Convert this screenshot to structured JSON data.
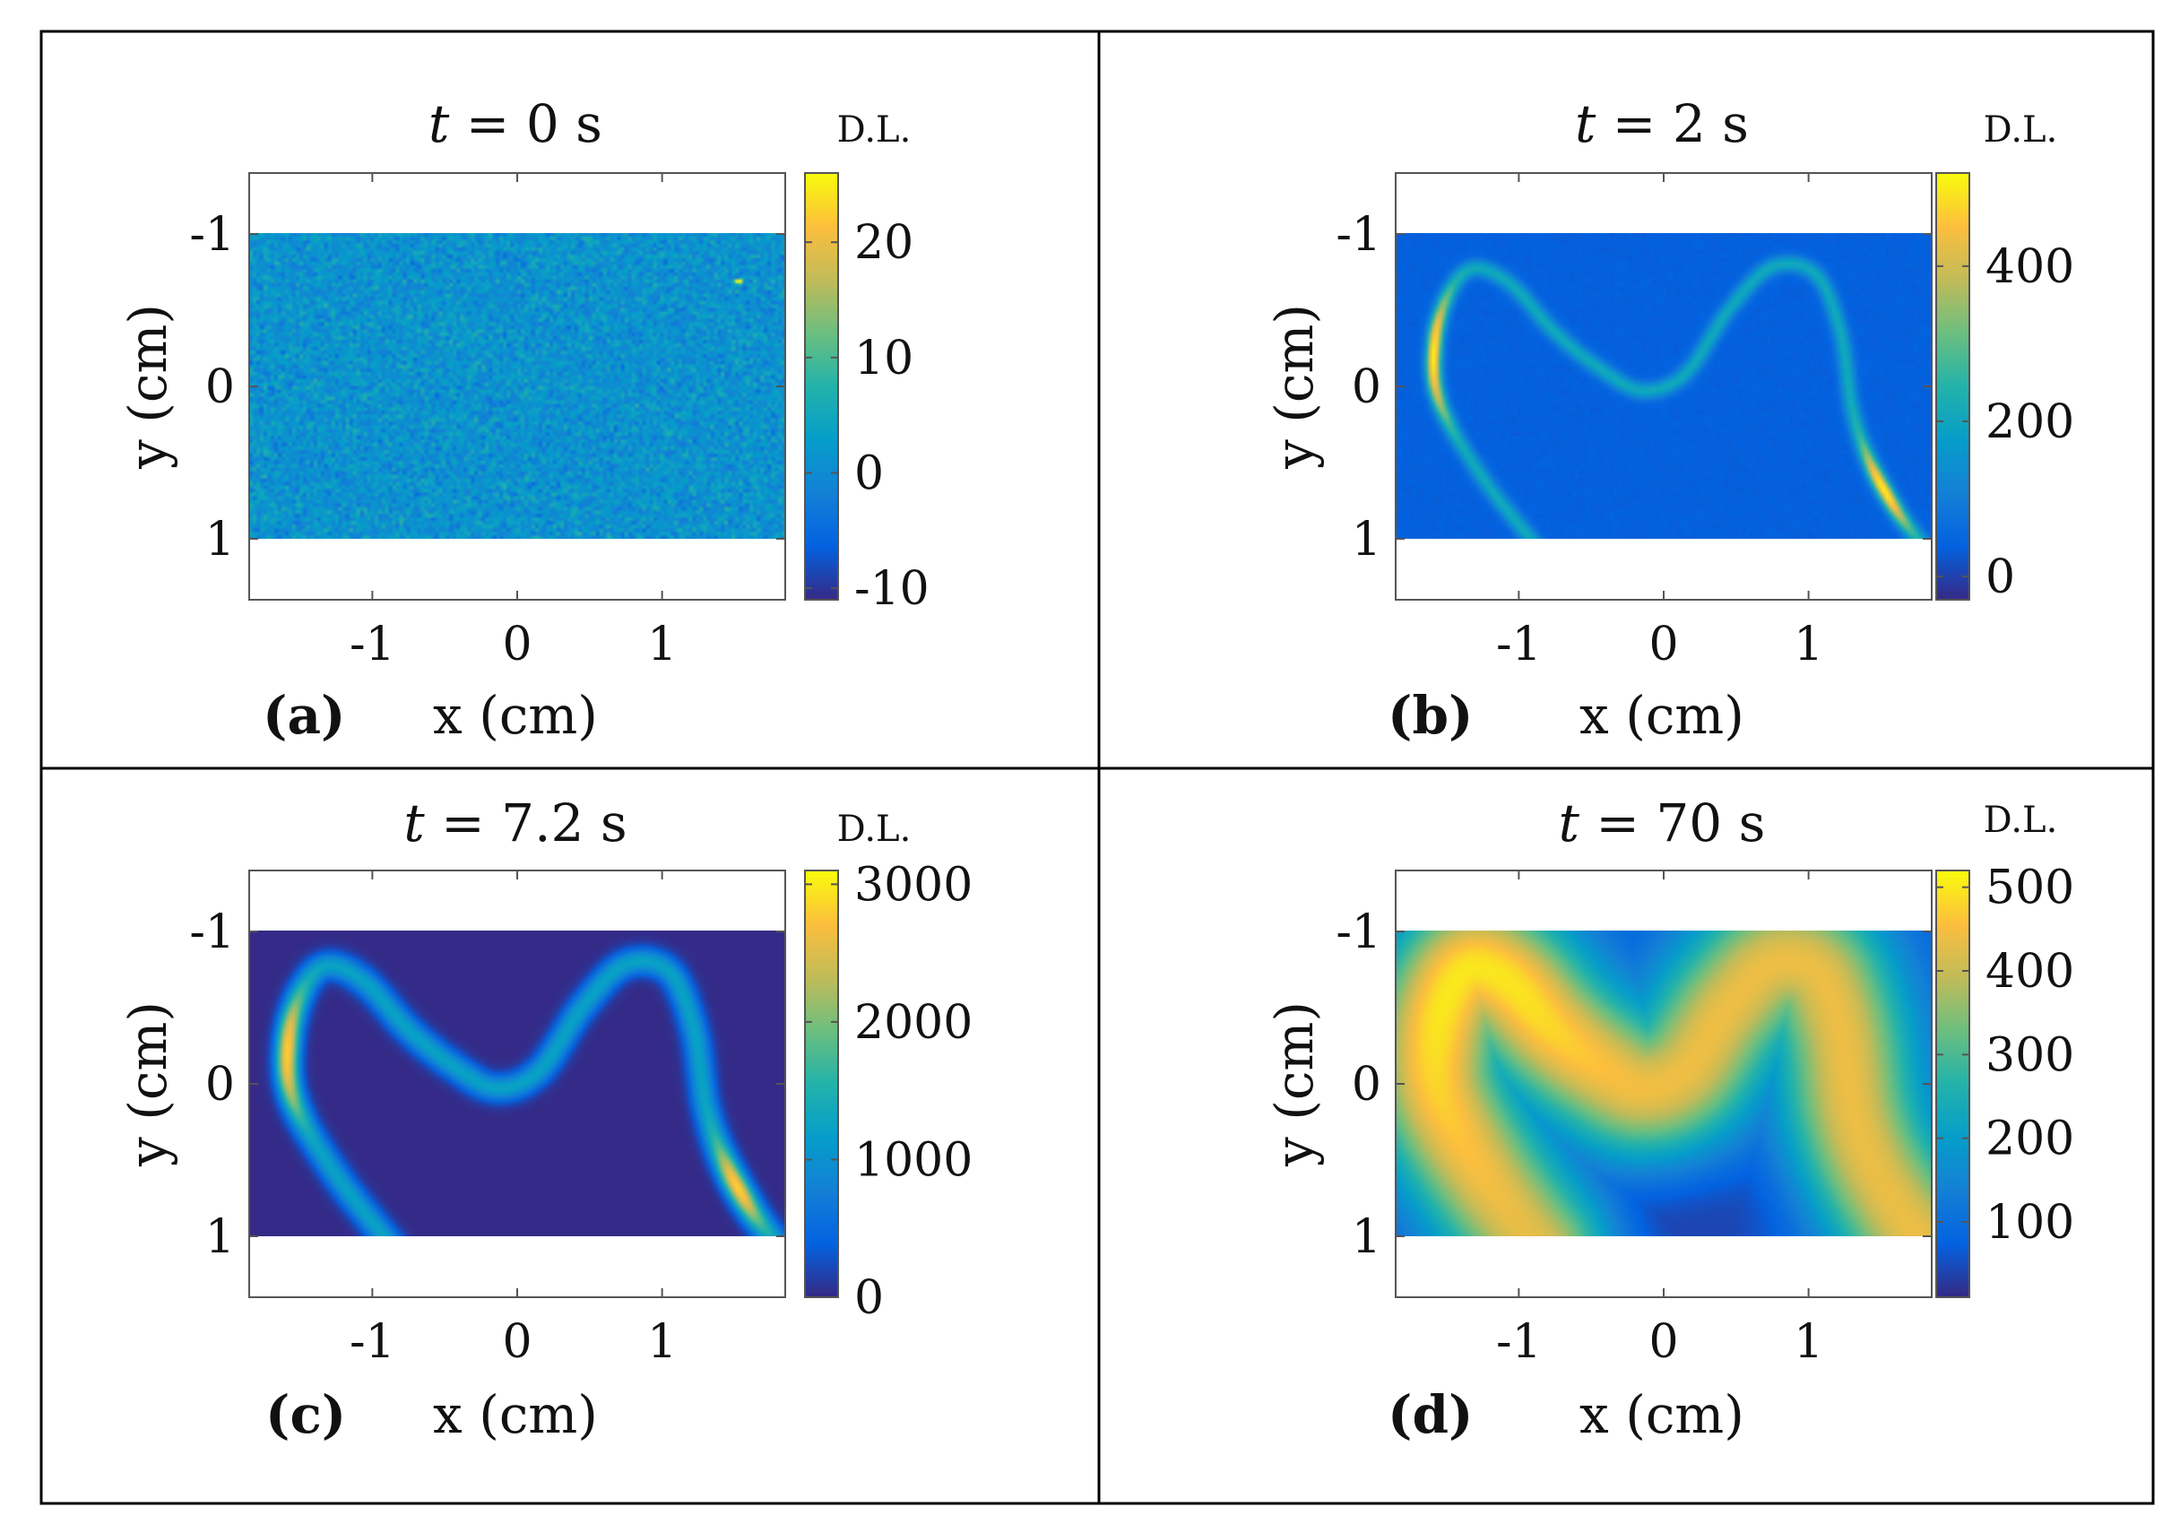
{
  "chart_data": [
    {
      "type": "heatmap",
      "panel_label": "(a)",
      "title": "t = 0 s",
      "title_time": "0",
      "xlabel": "x (cm)",
      "ylabel": "y (cm)",
      "xlim": [
        -1.85,
        1.85
      ],
      "ylim": [
        -1.4,
        1.4
      ],
      "data_extent_y": [
        -1,
        1
      ],
      "xticks": [
        -1,
        0,
        1
      ],
      "yticks": [
        -1,
        0,
        1
      ],
      "colorbar_label": "D.L.",
      "clim": [
        -11,
        26
      ],
      "colorbar_ticks": [
        -10,
        0,
        10,
        20
      ],
      "pattern": "uniform noise around ~0 with one hot pixel near (1.5, -0.7)"
    },
    {
      "type": "heatmap",
      "panel_label": "(b)",
      "title": "t = 2 s",
      "title_time": "2",
      "xlabel": "x (cm)",
      "ylabel": "y (cm)",
      "xlim": [
        -1.85,
        1.85
      ],
      "ylim": [
        -1.4,
        1.4
      ],
      "data_extent_y": [
        -1,
        1
      ],
      "xticks": [
        -1,
        0,
        1
      ],
      "yticks": [
        -1,
        0,
        1
      ],
      "colorbar_label": "D.L.",
      "clim": [
        -30,
        520
      ],
      "colorbar_ticks": [
        0,
        200,
        400
      ],
      "pattern": "thin M-shaped band, peaks at left and right legs"
    },
    {
      "type": "heatmap",
      "panel_label": "(c)",
      "title": "t = 7.2 s",
      "title_time": "7.2",
      "xlabel": "x (cm)",
      "ylabel": "y (cm)",
      "xlim": [
        -1.85,
        1.85
      ],
      "ylim": [
        -1.4,
        1.4
      ],
      "data_extent_y": [
        -1,
        1
      ],
      "xticks": [
        -1,
        0,
        1
      ],
      "yticks": [
        -1,
        0,
        1
      ],
      "colorbar_label": "D.L.",
      "clim": [
        0,
        3100
      ],
      "colorbar_ticks": [
        0,
        1000,
        2000,
        3000
      ],
      "pattern": "wider M-shaped band, peaks at left and right legs"
    },
    {
      "type": "heatmap",
      "panel_label": "(d)",
      "title": "t = 70 s",
      "title_time": "70",
      "xlabel": "x (cm)",
      "ylabel": "y (cm)",
      "xlim": [
        -1.85,
        1.85
      ],
      "ylim": [
        -1.4,
        1.4
      ],
      "data_extent_y": [
        -1,
        1
      ],
      "xticks": [
        -1,
        0,
        1
      ],
      "yticks": [
        -1,
        0,
        1
      ],
      "colorbar_label": "D.L.",
      "clim": [
        10,
        520
      ],
      "colorbar_ticks": [
        100,
        200,
        300,
        400,
        500
      ],
      "pattern": "broad diffuse M-shaped distribution"
    }
  ]
}
